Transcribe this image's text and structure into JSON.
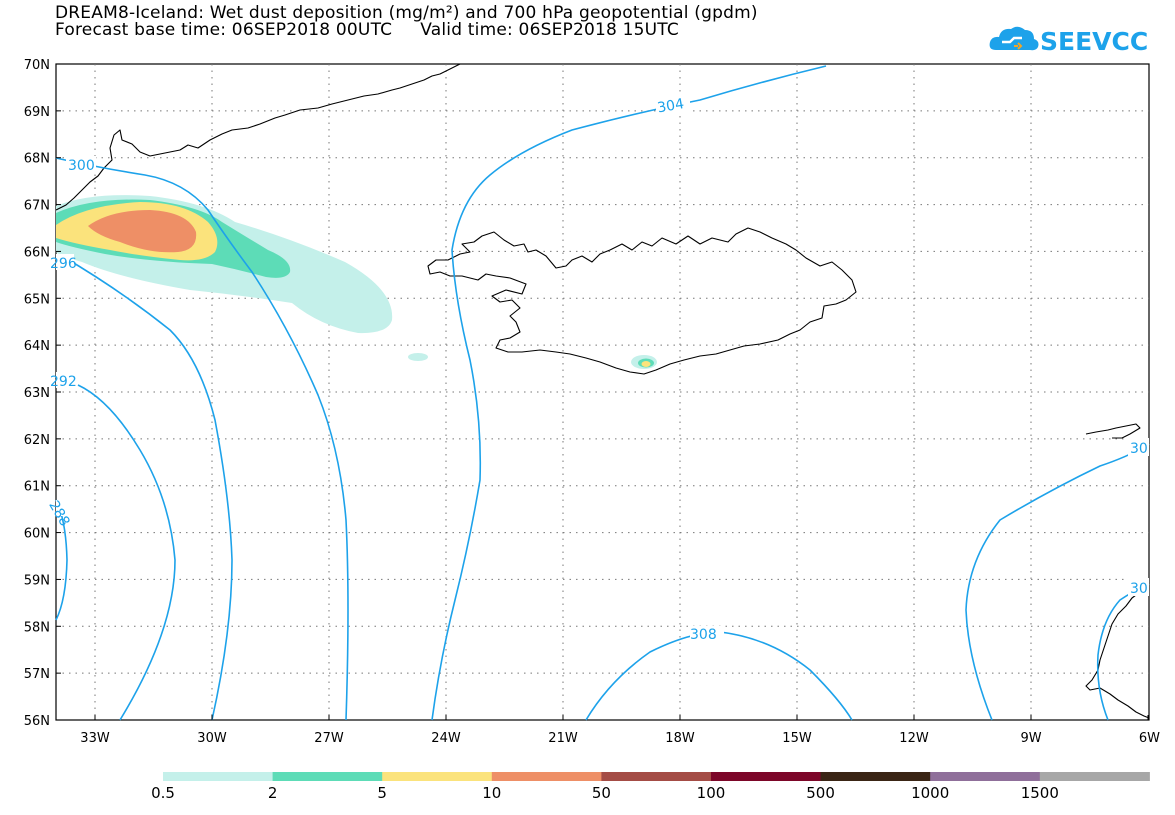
{
  "title": {
    "line1": "DREAM8-Iceland: Wet dust deposition (mg/m²) and 700 hPa geopotential (gpdm)",
    "line2": "Forecast base time: 06SEP2018 00UTC     Valid time: 06SEP2018 15UTC"
  },
  "logo": {
    "text": "SEEVCCC",
    "icon": "cloud-icon",
    "color": "#1da2ea"
  },
  "map": {
    "lat_labels": [
      "70N",
      "69N",
      "68N",
      "67N",
      "66N",
      "65N",
      "64N",
      "63N",
      "62N",
      "61N",
      "60N",
      "59N",
      "58N",
      "57N",
      "56N"
    ],
    "lon_labels": [
      "33W",
      "30W",
      "27W",
      "24W",
      "21W",
      "18W",
      "15W",
      "12W",
      "9W",
      "6W"
    ],
    "contour_labels": [
      "300",
      "296",
      "292",
      "288",
      "304",
      "308",
      "30",
      "30"
    ],
    "contour_color": "#1da2ea"
  },
  "legend": {
    "colors": [
      "#c4f0ea",
      "#5ddcb7",
      "#fbe37c",
      "#ee8f66",
      "#a44c45",
      "#7c0628",
      "#3a2515",
      "#8f6f9a",
      "#a7a7a7"
    ],
    "labels": [
      "0.5",
      "2",
      "5",
      "10",
      "50",
      "100",
      "500",
      "1000",
      "1500"
    ]
  }
}
